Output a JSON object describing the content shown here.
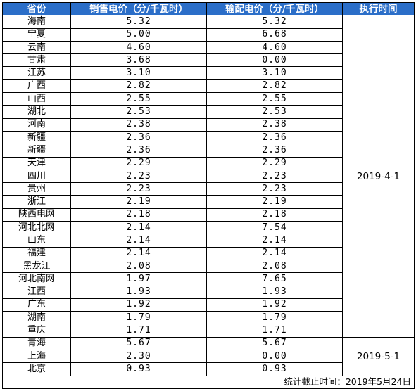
{
  "headers": [
    "省份",
    "销售电价（分/千瓦时）",
    "输配电价（分/千瓦时）",
    "执行时间"
  ],
  "rows": [
    [
      "海南",
      "5.32",
      "5.32"
    ],
    [
      "宁夏",
      "5.00",
      "6.68"
    ],
    [
      "云南",
      "4.60",
      "4.60"
    ],
    [
      "甘肃",
      "3.68",
      "0.00"
    ],
    [
      "江苏",
      "3.10",
      "3.10"
    ],
    [
      "广西",
      "2.82",
      "2.82"
    ],
    [
      "山西",
      "2.55",
      "2.55"
    ],
    [
      "湖北",
      "2.53",
      "2.53"
    ],
    [
      "河南",
      "2.38",
      "2.38"
    ],
    [
      "新疆",
      "2.36",
      "2.36"
    ],
    [
      "新疆",
      "2.36",
      "2.36"
    ],
    [
      "天津",
      "2.29",
      "2.29"
    ],
    [
      "四川",
      "2.23",
      "2.23"
    ],
    [
      "贵州",
      "2.23",
      "2.23"
    ],
    [
      "浙江",
      "2.19",
      "2.19"
    ],
    [
      "陕西电网",
      "2.18",
      "2.18"
    ],
    [
      "河北北网",
      "2.14",
      "7.54"
    ],
    [
      "山东",
      "2.14",
      "2.14"
    ],
    [
      "福建",
      "2.14",
      "2.14"
    ],
    [
      "黑龙江",
      "2.08",
      "2.08"
    ],
    [
      "河北南网",
      "1.97",
      "7.65"
    ],
    [
      "江西",
      "1.93",
      "1.93"
    ],
    [
      "广东",
      "1.92",
      "1.92"
    ],
    [
      "湖南",
      "1.79",
      "1.79"
    ],
    [
      "重庆",
      "1.71",
      "1.71"
    ],
    [
      "青海",
      "5.67",
      "5.67"
    ],
    [
      "上海",
      "2.30",
      "0.00"
    ],
    [
      "北京",
      "0.93",
      "0.93"
    ]
  ],
  "groups": [
    {
      "date": "2019-4-1",
      "span": 25
    },
    {
      "date": "2019-5-1",
      "span": 3
    }
  ],
  "footer": "统计截止时间：2019年5月24日",
  "colors": {
    "header_bg": "#2b6ec8",
    "header_text": "#ffffff",
    "border": "#000000"
  }
}
